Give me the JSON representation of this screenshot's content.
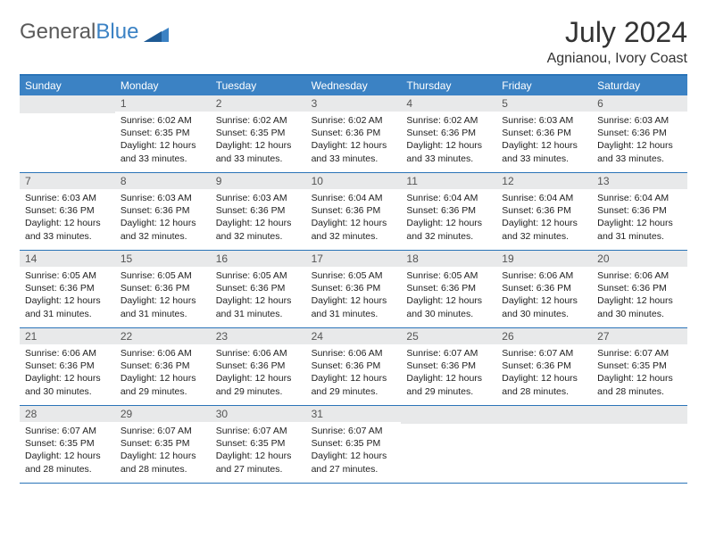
{
  "logo": {
    "word1": "General",
    "word2": "Blue"
  },
  "title": "July 2024",
  "location": "Agnianou, Ivory Coast",
  "colors": {
    "header_bg": "#3b82c4",
    "header_text": "#ffffff",
    "daynum_bg": "#e8e9ea",
    "border": "#2a74b8",
    "text": "#333333",
    "logo_gray": "#5a5a5a",
    "logo_blue": "#3b82c4"
  },
  "weekdays": [
    "Sunday",
    "Monday",
    "Tuesday",
    "Wednesday",
    "Thursday",
    "Friday",
    "Saturday"
  ],
  "weeks": [
    [
      {
        "empty": true
      },
      {
        "n": 1,
        "sunrise": "6:02 AM",
        "sunset": "6:35 PM",
        "daylight": "12 hours and 33 minutes."
      },
      {
        "n": 2,
        "sunrise": "6:02 AM",
        "sunset": "6:35 PM",
        "daylight": "12 hours and 33 minutes."
      },
      {
        "n": 3,
        "sunrise": "6:02 AM",
        "sunset": "6:36 PM",
        "daylight": "12 hours and 33 minutes."
      },
      {
        "n": 4,
        "sunrise": "6:02 AM",
        "sunset": "6:36 PM",
        "daylight": "12 hours and 33 minutes."
      },
      {
        "n": 5,
        "sunrise": "6:03 AM",
        "sunset": "6:36 PM",
        "daylight": "12 hours and 33 minutes."
      },
      {
        "n": 6,
        "sunrise": "6:03 AM",
        "sunset": "6:36 PM",
        "daylight": "12 hours and 33 minutes."
      }
    ],
    [
      {
        "n": 7,
        "sunrise": "6:03 AM",
        "sunset": "6:36 PM",
        "daylight": "12 hours and 33 minutes."
      },
      {
        "n": 8,
        "sunrise": "6:03 AM",
        "sunset": "6:36 PM",
        "daylight": "12 hours and 32 minutes."
      },
      {
        "n": 9,
        "sunrise": "6:03 AM",
        "sunset": "6:36 PM",
        "daylight": "12 hours and 32 minutes."
      },
      {
        "n": 10,
        "sunrise": "6:04 AM",
        "sunset": "6:36 PM",
        "daylight": "12 hours and 32 minutes."
      },
      {
        "n": 11,
        "sunrise": "6:04 AM",
        "sunset": "6:36 PM",
        "daylight": "12 hours and 32 minutes."
      },
      {
        "n": 12,
        "sunrise": "6:04 AM",
        "sunset": "6:36 PM",
        "daylight": "12 hours and 32 minutes."
      },
      {
        "n": 13,
        "sunrise": "6:04 AM",
        "sunset": "6:36 PM",
        "daylight": "12 hours and 31 minutes."
      }
    ],
    [
      {
        "n": 14,
        "sunrise": "6:05 AM",
        "sunset": "6:36 PM",
        "daylight": "12 hours and 31 minutes."
      },
      {
        "n": 15,
        "sunrise": "6:05 AM",
        "sunset": "6:36 PM",
        "daylight": "12 hours and 31 minutes."
      },
      {
        "n": 16,
        "sunrise": "6:05 AM",
        "sunset": "6:36 PM",
        "daylight": "12 hours and 31 minutes."
      },
      {
        "n": 17,
        "sunrise": "6:05 AM",
        "sunset": "6:36 PM",
        "daylight": "12 hours and 31 minutes."
      },
      {
        "n": 18,
        "sunrise": "6:05 AM",
        "sunset": "6:36 PM",
        "daylight": "12 hours and 30 minutes."
      },
      {
        "n": 19,
        "sunrise": "6:06 AM",
        "sunset": "6:36 PM",
        "daylight": "12 hours and 30 minutes."
      },
      {
        "n": 20,
        "sunrise": "6:06 AM",
        "sunset": "6:36 PM",
        "daylight": "12 hours and 30 minutes."
      }
    ],
    [
      {
        "n": 21,
        "sunrise": "6:06 AM",
        "sunset": "6:36 PM",
        "daylight": "12 hours and 30 minutes."
      },
      {
        "n": 22,
        "sunrise": "6:06 AM",
        "sunset": "6:36 PM",
        "daylight": "12 hours and 29 minutes."
      },
      {
        "n": 23,
        "sunrise": "6:06 AM",
        "sunset": "6:36 PM",
        "daylight": "12 hours and 29 minutes."
      },
      {
        "n": 24,
        "sunrise": "6:06 AM",
        "sunset": "6:36 PM",
        "daylight": "12 hours and 29 minutes."
      },
      {
        "n": 25,
        "sunrise": "6:07 AM",
        "sunset": "6:36 PM",
        "daylight": "12 hours and 29 minutes."
      },
      {
        "n": 26,
        "sunrise": "6:07 AM",
        "sunset": "6:36 PM",
        "daylight": "12 hours and 28 minutes."
      },
      {
        "n": 27,
        "sunrise": "6:07 AM",
        "sunset": "6:35 PM",
        "daylight": "12 hours and 28 minutes."
      }
    ],
    [
      {
        "n": 28,
        "sunrise": "6:07 AM",
        "sunset": "6:35 PM",
        "daylight": "12 hours and 28 minutes."
      },
      {
        "n": 29,
        "sunrise": "6:07 AM",
        "sunset": "6:35 PM",
        "daylight": "12 hours and 28 minutes."
      },
      {
        "n": 30,
        "sunrise": "6:07 AM",
        "sunset": "6:35 PM",
        "daylight": "12 hours and 27 minutes."
      },
      {
        "n": 31,
        "sunrise": "6:07 AM",
        "sunset": "6:35 PM",
        "daylight": "12 hours and 27 minutes."
      },
      {
        "empty": true
      },
      {
        "empty": true
      },
      {
        "empty": true
      }
    ]
  ],
  "labels": {
    "sunrise": "Sunrise:",
    "sunset": "Sunset:",
    "daylight": "Daylight:"
  }
}
